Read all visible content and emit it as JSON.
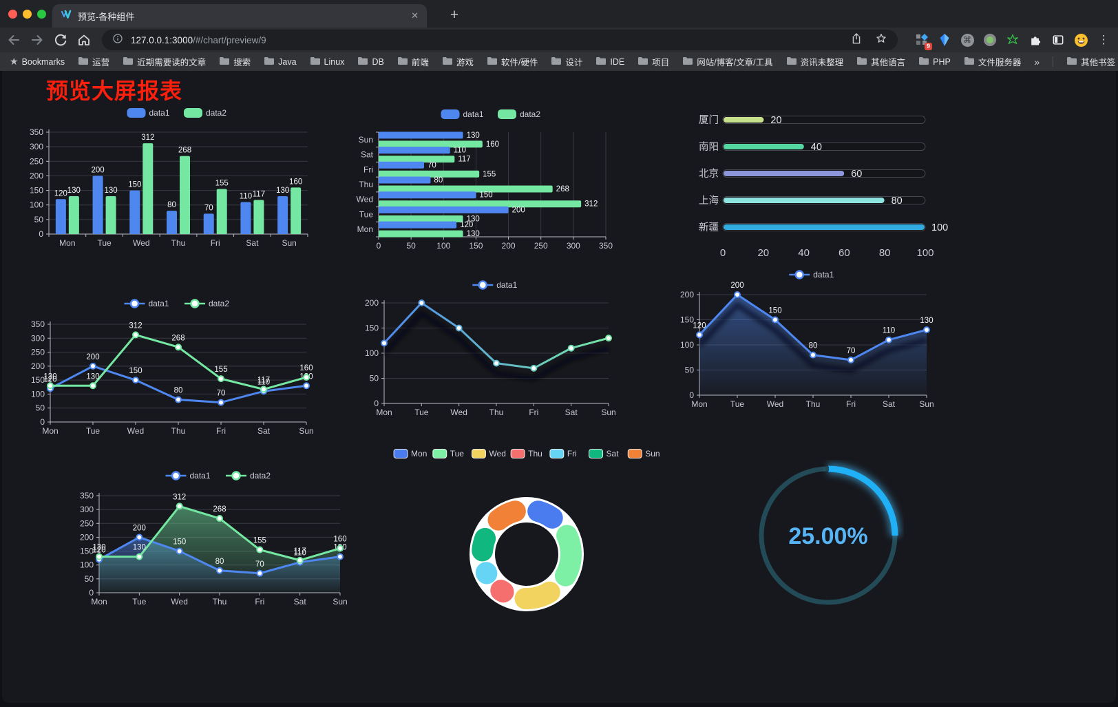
{
  "browser": {
    "tab_title": "预览-各种组件",
    "url_host": "127.0.0.1:3000",
    "url_path": "/#/chart/preview/9",
    "bookmarks_label": "Bookmarks",
    "bookmarks": [
      "运营",
      "近期需要读的文章",
      "搜索",
      "Java",
      "Linux",
      "DB",
      "前端",
      "游戏",
      "软件/硬件",
      "设计",
      "IDE",
      "项目",
      "网站/博客/文章/工具",
      "资讯未整理",
      "其他语言",
      "PHP",
      "文件服务器"
    ],
    "other_bookmarks": "其他书签",
    "icons": {
      "close": "✕",
      "new_tab": "+",
      "kebab": "⋮",
      "overflow_chevron": "»",
      "bookmarks_star": "★",
      "cmd": "⌘",
      "extension_badge": "9"
    }
  },
  "page": {
    "title": "预览大屏报表"
  },
  "chart_data": [
    {
      "id": "c1",
      "type": "bar",
      "categories": [
        "Mon",
        "Tue",
        "Wed",
        "Thu",
        "Fri",
        "Sat",
        "Sun"
      ],
      "series": [
        {
          "name": "data1",
          "color": "#4e87f0",
          "values": [
            120,
            200,
            150,
            80,
            70,
            110,
            130
          ]
        },
        {
          "name": "data2",
          "color": "#74e8a3",
          "values": [
            130,
            130,
            312,
            268,
            155,
            117,
            160
          ]
        }
      ],
      "ylim": [
        0,
        350
      ],
      "ytick_step": 50,
      "legend": true,
      "value_labels": true
    },
    {
      "id": "c2",
      "type": "hbar",
      "categories": [
        "Mon",
        "Tue",
        "Wed",
        "Thu",
        "Fri",
        "Sat",
        "Sun"
      ],
      "series": [
        {
          "name": "data1",
          "color": "#4e87f0",
          "values": [
            120,
            200,
            150,
            80,
            70,
            110,
            130
          ]
        },
        {
          "name": "data2",
          "color": "#74e8a3",
          "values": [
            130,
            130,
            312,
            268,
            155,
            117,
            160
          ]
        }
      ],
      "xlim": [
        0,
        350
      ],
      "xtick_step": 50,
      "legend": true,
      "value_labels": true
    },
    {
      "id": "c3",
      "type": "progress",
      "max": 100,
      "rows": [
        {
          "label": "厦门",
          "value": 20,
          "color": "#c6e08b"
        },
        {
          "label": "南阳",
          "value": 40,
          "color": "#55d7a2"
        },
        {
          "label": "北京",
          "value": 60,
          "color": "#8d95db"
        },
        {
          "label": "上海",
          "value": 80,
          "color": "#8ce3e0"
        },
        {
          "label": "新疆",
          "value": 100,
          "color": "#32ace0"
        }
      ],
      "xticks": [
        0,
        20,
        40,
        60,
        80,
        100
      ]
    },
    {
      "id": "c4",
      "type": "line",
      "categories": [
        "Mon",
        "Tue",
        "Wed",
        "Thu",
        "Fri",
        "Sat",
        "Sun"
      ],
      "series": [
        {
          "name": "data1",
          "color": "#4e87f0",
          "values": [
            120,
            200,
            150,
            80,
            70,
            110,
            130
          ]
        },
        {
          "name": "data2",
          "color": "#74e8a3",
          "values": [
            130,
            130,
            312,
            268,
            155,
            117,
            160
          ]
        }
      ],
      "ylim": [
        0,
        350
      ],
      "ytick_step": 50,
      "legend": true,
      "value_labels": true
    },
    {
      "id": "c5",
      "type": "line",
      "categories": [
        "Mon",
        "Tue",
        "Wed",
        "Thu",
        "Fri",
        "Sat",
        "Sun"
      ],
      "series": [
        {
          "name": "data1",
          "gradient": [
            "#4e87f0",
            "#74e8a3"
          ],
          "values": [
            120,
            200,
            150,
            80,
            70,
            110,
            130
          ]
        }
      ],
      "ylim": [
        0,
        200
      ],
      "ytick_step": 50,
      "legend": true,
      "value_labels": false,
      "shadow": true
    },
    {
      "id": "c6",
      "type": "line",
      "categories": [
        "Mon",
        "Tue",
        "Wed",
        "Thu",
        "Fri",
        "Sat",
        "Sun"
      ],
      "series": [
        {
          "name": "data1",
          "color": "#4e87f0",
          "values": [
            120,
            200,
            150,
            80,
            70,
            110,
            130
          ],
          "area": true
        }
      ],
      "ylim": [
        0,
        200
      ],
      "ytick_step": 50,
      "legend": true,
      "value_labels": true,
      "shadow": true
    },
    {
      "id": "c7",
      "type": "line",
      "categories": [
        "Mon",
        "Tue",
        "Wed",
        "Thu",
        "Fri",
        "Sat",
        "Sun"
      ],
      "series": [
        {
          "name": "data1",
          "color": "#4e87f0",
          "values": [
            120,
            200,
            150,
            80,
            70,
            110,
            130
          ],
          "area": true
        },
        {
          "name": "data2",
          "color": "#74e8a3",
          "values": [
            130,
            130,
            312,
            268,
            155,
            117,
            160
          ],
          "area": true
        }
      ],
      "ylim": [
        0,
        350
      ],
      "ytick_step": 50,
      "legend": true,
      "value_labels": true
    },
    {
      "id": "c8",
      "type": "pie",
      "categories": [
        "Mon",
        "Tue",
        "Wed",
        "Thu",
        "Fri",
        "Sat",
        "Sun"
      ],
      "values": [
        120,
        200,
        150,
        80,
        70,
        110,
        130
      ],
      "colors": [
        "#4a7cf0",
        "#7df0a6",
        "#f2d35f",
        "#f56f6f",
        "#66d4f5",
        "#10b77f",
        "#f08137"
      ],
      "legend": true
    },
    {
      "id": "c9",
      "type": "gauge",
      "value": 25,
      "label": "25.00%",
      "color": "#1fb0f6",
      "track_color": "#234a57",
      "text_color": "#57b5f6"
    }
  ]
}
